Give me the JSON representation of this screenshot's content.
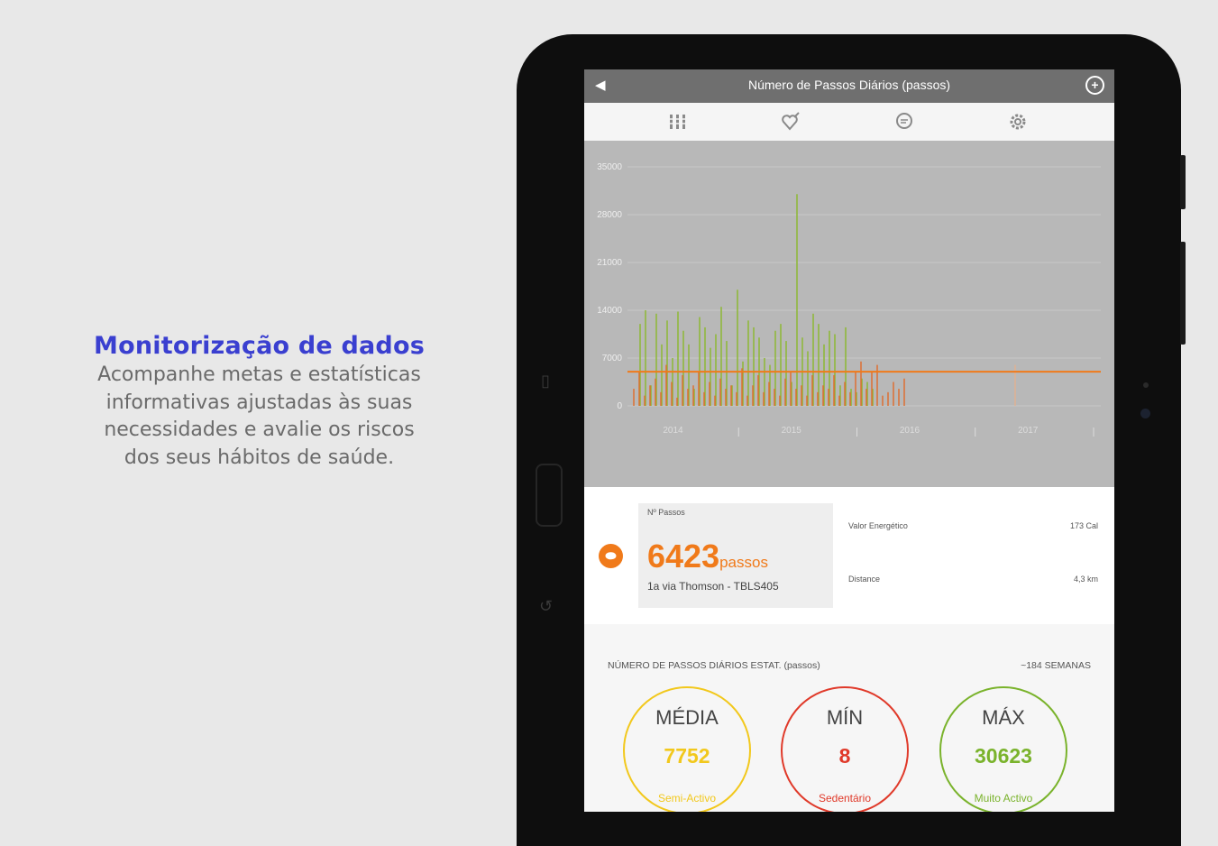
{
  "promo": {
    "title": "Monitorização de dados",
    "lines": [
      "Acompanhe metas e estatísticas",
      "informativas ajustadas às suas",
      "necessidades e avalie os riscos",
      "dos seus hábitos de saúde."
    ]
  },
  "app": {
    "title": "Número de Passos Diários (passos)",
    "toolbar_icons": [
      "grid-icon",
      "heart-pin-icon",
      "chat-icon",
      "settings-icon"
    ]
  },
  "chart_data": {
    "type": "bar",
    "ylim": [
      0,
      35000
    ],
    "y_ticks": [
      "35000",
      "28000",
      "21000",
      "14000",
      "7000",
      "0"
    ],
    "x_ticks": [
      "2014",
      "2015",
      "2016",
      "2017"
    ],
    "threshold": 5000,
    "series": [
      {
        "color": "#8fb83c",
        "values": [
          12000,
          14000,
          3000,
          13500,
          9000,
          12500,
          7000,
          13800,
          11000,
          9000,
          2500,
          13000,
          11500,
          8500,
          10500,
          14500,
          9500,
          3000,
          17000,
          6500,
          12500,
          11500,
          10000,
          7000,
          6000,
          11000,
          12000,
          9500,
          3500,
          31000,
          10000,
          8000,
          13500,
          12000,
          9000,
          11000,
          10500,
          3000,
          11500,
          2500,
          2000,
          4000,
          3500,
          2500
        ]
      },
      {
        "color": "#e06a2a",
        "values": [
          2500,
          5000,
          1500,
          3000,
          4000,
          2000,
          6000,
          3500,
          1200,
          4500,
          2500,
          3000,
          5000,
          2000,
          3500,
          1500,
          4000,
          2500,
          3000,
          2000,
          5500,
          1500,
          3000,
          4500,
          2000,
          3500,
          2500,
          1500,
          4000,
          5000,
          2500,
          3000,
          1500,
          4500,
          2000,
          3000,
          2500,
          4500,
          1500,
          3500,
          2000,
          5000,
          6500,
          2500,
          5000,
          6000,
          1500,
          2000,
          3500,
          2500,
          4000
        ]
      }
    ]
  },
  "range_buttons": [
    "–",
    "–",
    "–",
    "–",
    "–",
    "–",
    "–"
  ],
  "current": {
    "label": "Nº Passos",
    "value": "6423",
    "unit": "passos",
    "device": "1a via Thomson - TBLS405",
    "energy_label": "Valor Energético",
    "energy_value": "173 Cal",
    "distance_label": "Distance",
    "distance_value": "4,3 km"
  },
  "stats": {
    "header": "NÚMERO DE PASSOS DIÁRIOS ESTAT. (passos)",
    "weeks": "~184 SEMANAS",
    "items": [
      {
        "title": "MÉDIA",
        "value": "7752",
        "category": "Semi-Activo",
        "color": "#f2c81c"
      },
      {
        "title": "MÍN",
        "value": "8",
        "category": "Sedentário",
        "color": "#e03a2a"
      },
      {
        "title": "MÁX",
        "value": "30623",
        "category": "Muito Activo",
        "color": "#7ab32c"
      }
    ]
  }
}
